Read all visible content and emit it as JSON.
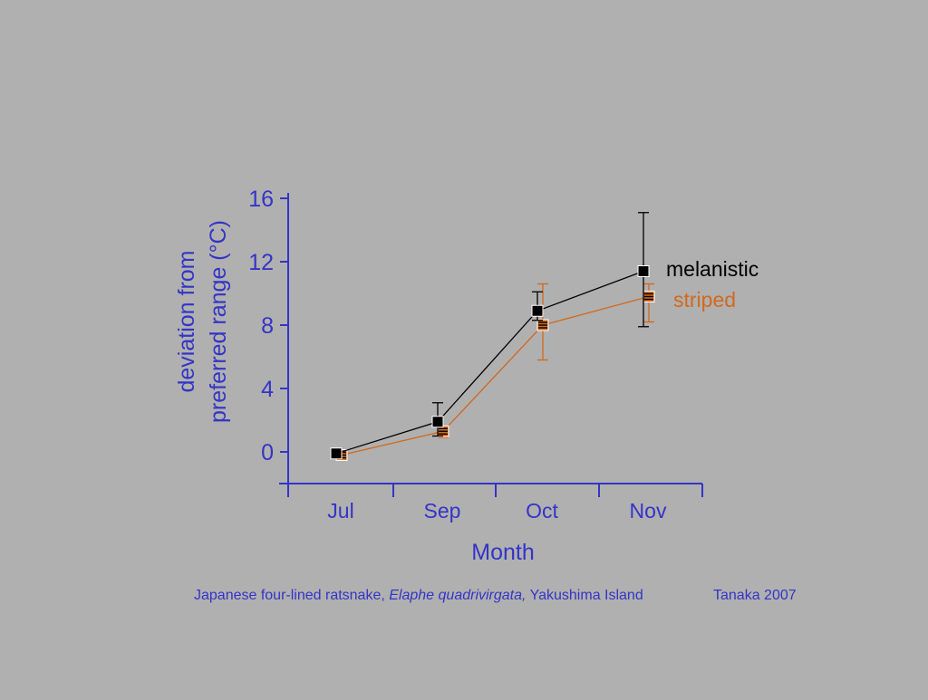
{
  "chart_data": {
    "type": "line",
    "categories": [
      "Jul",
      "Sep",
      "Oct",
      "Nov"
    ],
    "xlabel": "Month",
    "ylabel_line1": "deviation from",
    "ylabel_line2": "preferred range (°C)",
    "ylim": [
      -2,
      16
    ],
    "yticks": [
      0,
      4,
      8,
      12,
      16
    ],
    "grid": false,
    "legend": "inline-right",
    "series": [
      {
        "name": "melanistic",
        "color": "#000000",
        "marker": "filled-square",
        "values": [
          -0.1,
          1.9,
          8.9,
          11.4
        ],
        "err_low": [
          -0.1,
          1.0,
          8.3,
          7.9
        ],
        "err_high": [
          -0.1,
          3.1,
          10.1,
          15.1
        ]
      },
      {
        "name": "striped",
        "color": "#d2691e",
        "marker": "striped-square",
        "values": [
          -0.2,
          1.3,
          8.0,
          9.8
        ],
        "err_low": [
          -0.2,
          0.9,
          5.8,
          8.2
        ],
        "err_high": [
          -0.2,
          1.6,
          10.6,
          10.6
        ]
      }
    ]
  },
  "caption": {
    "common_name": "Japanese four-lined ratsnake, ",
    "species": "Elaphe quadrivirgata,",
    "location": " Yakushima Island"
  },
  "credit": "Tanaka 2007",
  "colors": {
    "background": "#b0b0b0",
    "axis": "#3434c8",
    "melanistic": "#000000",
    "striped": "#d2691e"
  }
}
